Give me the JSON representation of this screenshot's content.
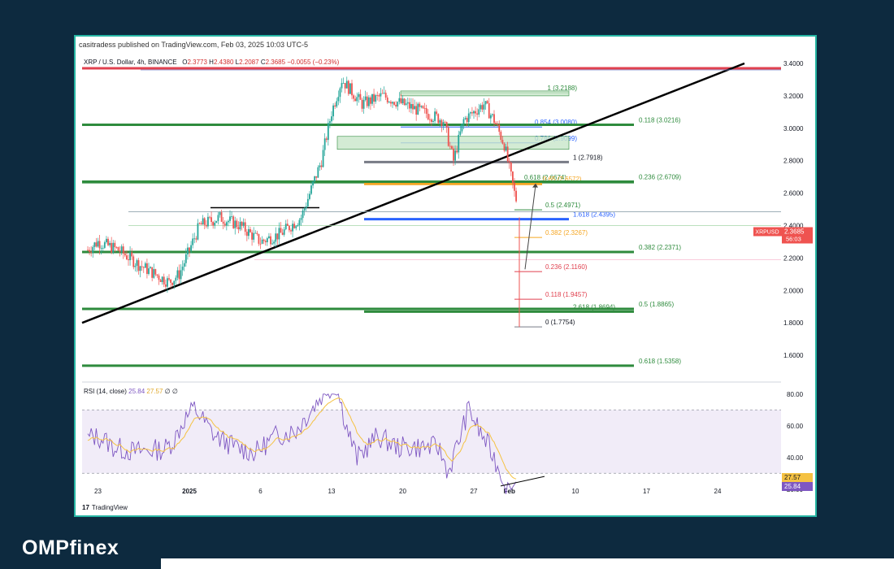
{
  "publisher": "casitradess published on TradingView.com, Feb 03, 2025 10:03 UTC-5",
  "symbol_line": {
    "name": "XRP / U.S. Dollar, 4h, BINANCE",
    "open_label": "O",
    "open": "2.3773",
    "high_label": "H",
    "high": "2.4380",
    "low_label": "L",
    "low": "2.2087",
    "close_label": "C",
    "close": "2.3685",
    "change": "−0.0055 (−0.23%)"
  },
  "rsi_label": {
    "title": "RSI (14, close)",
    "v1": "25.84",
    "v2": "27.57",
    "v3": "∅",
    "v4": "∅"
  },
  "tv_logo": "TradingView",
  "brand": "OMPfinex",
  "price_badge": {
    "symbol": "XRPUSD",
    "price": "2.3685",
    "countdown": "56:03"
  },
  "rsi_badges": {
    "upper": "27.57",
    "lower": "25.84"
  },
  "colors": {
    "green": "#2e8b3d",
    "red": "#e0414f",
    "blue": "#2962ff",
    "orange": "#f5a623",
    "black": "#000000",
    "gray": "#787b86",
    "up_candle": "#26a69a",
    "down_candle": "#ef5350",
    "rsi_line": "#7e57c2",
    "rsi_ma": "#f5c242"
  },
  "chart_data": [
    {
      "type": "line",
      "subtype": "candlestick",
      "symbol": "XRP / U.S. Dollar",
      "timeframe": "4h",
      "exchange": "BINANCE",
      "y_axis_position": "right",
      "ylim": [
        1.5,
        3.45
      ],
      "y_ticks": [
        "3.4000",
        "3.2000",
        "3.0000",
        "2.8000",
        "2.6000",
        "2.4000",
        "2.2000",
        "2.0000",
        "1.8000",
        "1.6000"
      ],
      "x_ticks": [
        "23",
        "2025",
        "6",
        "13",
        "20",
        "27",
        "Feb",
        "10",
        "17",
        "24"
      ],
      "series": [
        {
          "values_approx": [
            {
              "x": "Dec 22",
              "y": 2.25
            },
            {
              "x": "Dec 23",
              "y": 2.3
            },
            {
              "x": "Dec 25",
              "y": 2.25
            },
            {
              "x": "Dec 27",
              "y": 2.16
            },
            {
              "x": "Dec 30",
              "y": 2.05
            },
            {
              "x": "Dec 31",
              "y": 2.1
            },
            {
              "x": "Jan 2",
              "y": 2.4
            },
            {
              "x": "Jan 4",
              "y": 2.45
            },
            {
              "x": "Jan 6",
              "y": 2.4
            },
            {
              "x": "Jan 8",
              "y": 2.3
            },
            {
              "x": "Jan 10",
              "y": 2.35
            },
            {
              "x": "Jan 12",
              "y": 2.45
            },
            {
              "x": "Jan 14",
              "y": 2.8
            },
            {
              "x": "Jan 15",
              "y": 3.1
            },
            {
              "x": "Jan 16",
              "y": 3.3
            },
            {
              "x": "Jan 18",
              "y": 3.15
            },
            {
              "x": "Jan 20",
              "y": 3.2
            },
            {
              "x": "Jan 22",
              "y": 3.15
            },
            {
              "x": "Jan 24",
              "y": 3.1
            },
            {
              "x": "Jan 26",
              "y": 3.05
            },
            {
              "x": "Jan 27",
              "y": 2.8
            },
            {
              "x": "Jan 28",
              "y": 3.05
            },
            {
              "x": "Jan 30",
              "y": 3.15
            },
            {
              "x": "Jan 31",
              "y": 3.05
            },
            {
              "x": "Feb 1",
              "y": 2.9
            },
            {
              "x": "Feb 2",
              "y": 2.6
            },
            {
              "x": "Feb 3",
              "y": 2.3685
            }
          ]
        }
      ],
      "horizontal_levels": [
        {
          "label": "",
          "price": 3.37,
          "color": "red"
        },
        {
          "label": "1 (3.2188)",
          "price": 3.2188,
          "color": "green"
        },
        {
          "label": "0.854 (3.0080)",
          "price": 3.008,
          "color": "blue"
        },
        {
          "label": "0.118 (3.0216)",
          "price": 3.0216,
          "color": "green"
        },
        {
          "label": "0.786 (2.9099)",
          "price": 2.9099,
          "color": "blue"
        },
        {
          "label": "1 (2.7918)",
          "price": 2.7918,
          "color": "gray"
        },
        {
          "label": "0.618 (2.6674)",
          "price": 2.6674,
          "color": "green"
        },
        {
          "label": "0.65 (2.6572)",
          "price": 2.6572,
          "color": "orange"
        },
        {
          "label": "0.236 (2.6709)",
          "price": 2.6709,
          "color": "green"
        },
        {
          "label": "0.5 (2.4971)",
          "price": 2.4971,
          "color": "green"
        },
        {
          "label": "1.618 (2.4395)",
          "price": 2.4395,
          "color": "blue"
        },
        {
          "label": "0.382 (2.3267)",
          "price": 2.3267,
          "color": "orange"
        },
        {
          "label": "0.382 (2.2371)",
          "price": 2.2371,
          "color": "green"
        },
        {
          "label": "0.236 (2.1160)",
          "price": 2.116,
          "color": "red"
        },
        {
          "label": "0.118 (1.9457)",
          "price": 1.9457,
          "color": "red"
        },
        {
          "label": "2.618 (1.8694)",
          "price": 1.8694,
          "color": "green"
        },
        {
          "label": "0.5 (1.8865)",
          "price": 1.8865,
          "color": "green"
        },
        {
          "label": "0 (1.7754)",
          "price": 1.7754,
          "color": "gray"
        },
        {
          "label": "0.618 (1.5358)",
          "price": 1.5358,
          "color": "green"
        }
      ]
    },
    {
      "type": "line",
      "title": "RSI (14, close)",
      "ylim": [
        15,
        85
      ],
      "y_ticks": [
        "80.00",
        "60.00",
        "40.00",
        "20.00"
      ],
      "series": [
        {
          "name": "RSI",
          "last": 25.84
        },
        {
          "name": "RSI MA",
          "last": 27.57
        }
      ]
    }
  ]
}
